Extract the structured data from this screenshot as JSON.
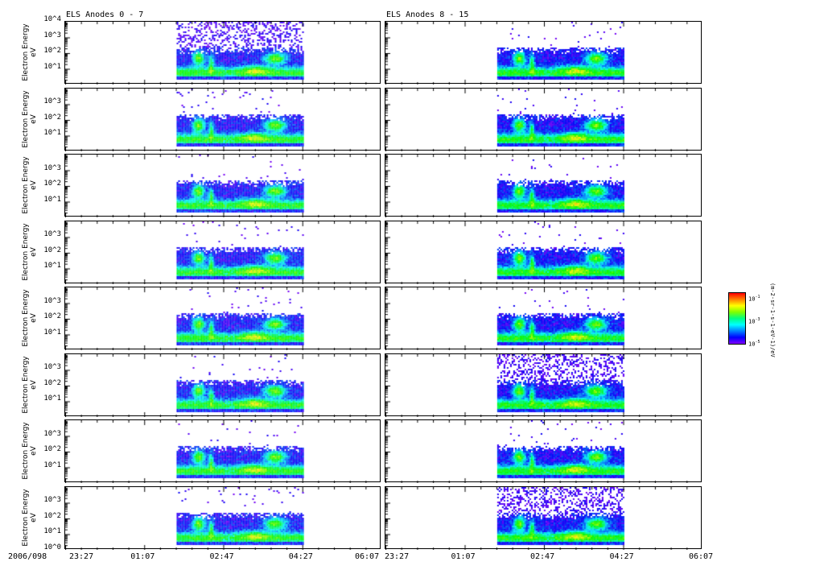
{
  "chart_data": {
    "type": "heatmap",
    "titles": [
      "ELS Anodes 0 - 7",
      "ELS Anodes 8 - 15"
    ],
    "ylabel": "Electron Energy",
    "yunit": "eV",
    "yscale": "log",
    "ylim_log10": [
      0,
      4
    ],
    "x_date": "2006/098",
    "x_ticks": [
      "23:27",
      "01:07",
      "02:47",
      "04:27",
      "06:07"
    ],
    "x_range_minutes": [
      0,
      400
    ],
    "data_window_minutes": {
      "left": [
        141,
        300
      ],
      "right": [
        141,
        300
      ]
    },
    "rows": 8,
    "columns": [
      "Anodes 0-7",
      "Anodes 8-15"
    ],
    "y_ticks_top": [
      "10^4",
      "10^3",
      "10^2",
      "10^1"
    ],
    "y_ticks_middle": [
      "10^3",
      "10^2",
      "10^1"
    ],
    "y_ticks_bottom": [
      "10^3",
      "10^2",
      "10^1",
      "10^0"
    ],
    "colorbar": {
      "label": "(m-2-sr-1-s-1-eV-1)/eV",
      "ticks": [
        "10^-1",
        "10^-3",
        "10^-5"
      ],
      "colormap": "rainbow"
    }
  }
}
